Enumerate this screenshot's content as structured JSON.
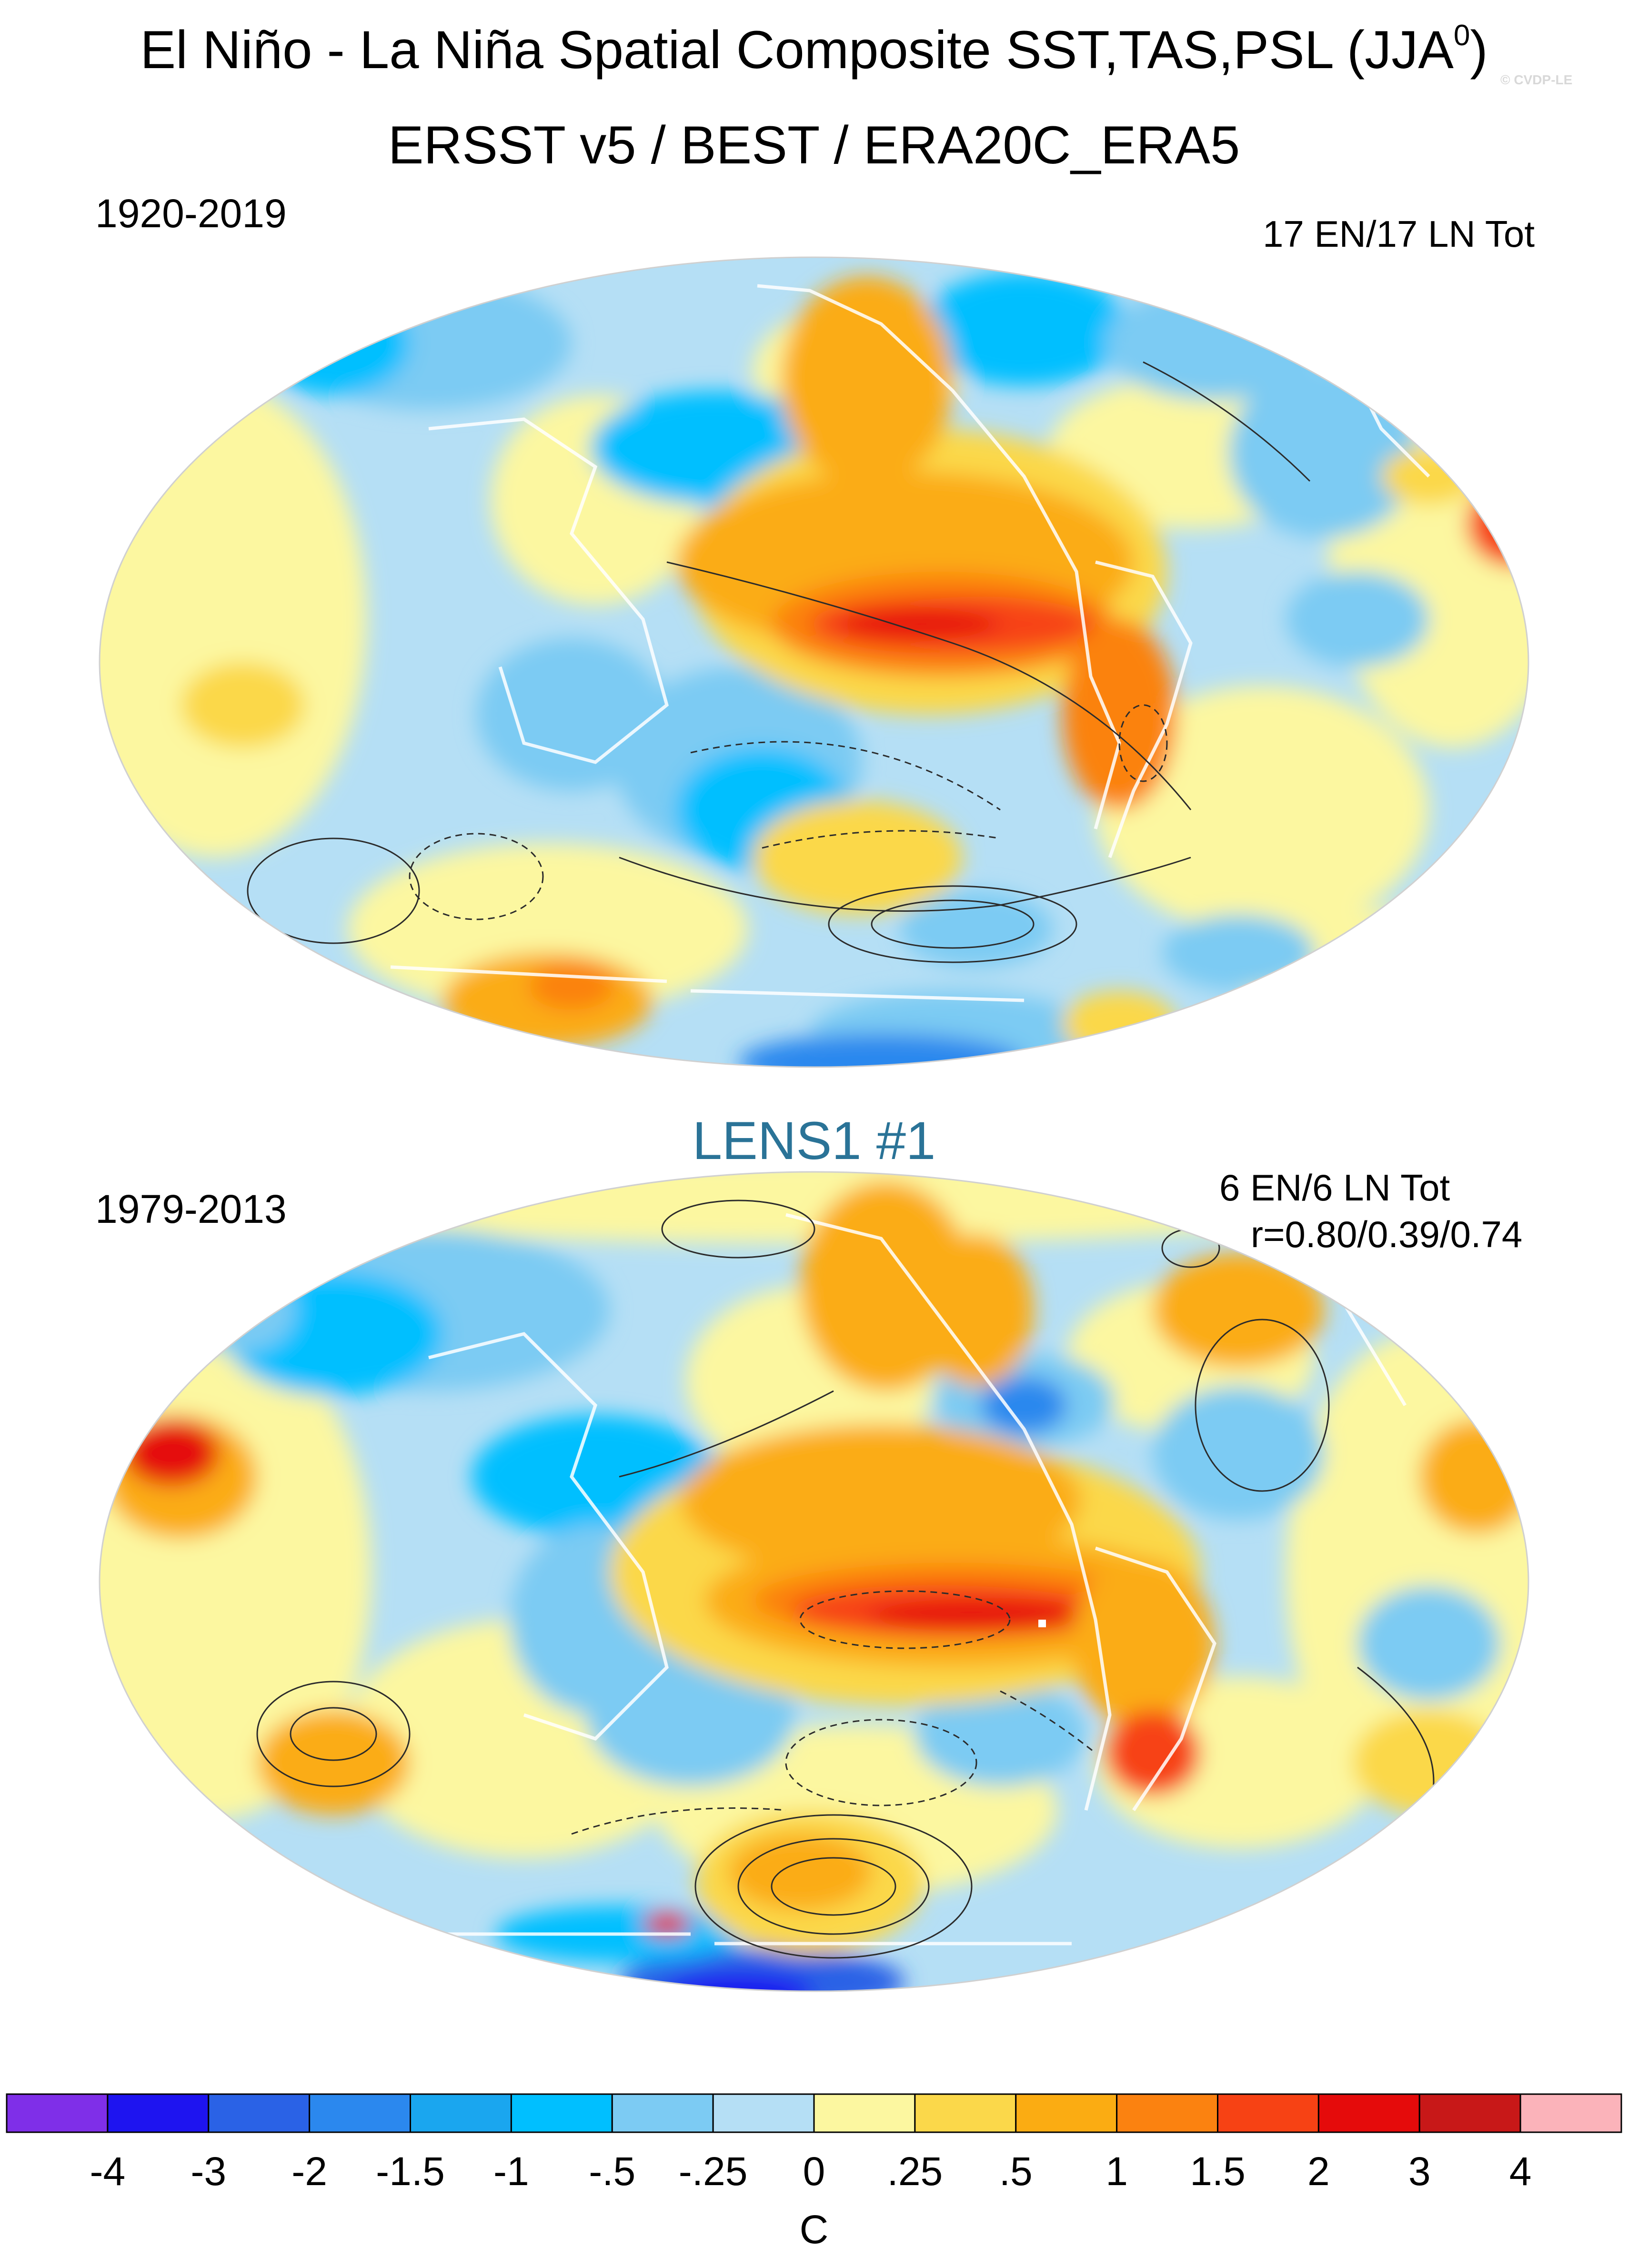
{
  "header": {
    "title_main": "El Niño - La Niña Spatial Composite SST,TAS,PSL (JJA",
    "title_sup": "0",
    "title_close": ")",
    "subtitle": "ERSST v5 / BEST / ERA20C_ERA5",
    "credit": "© CVDP-LE"
  },
  "panels": [
    {
      "period": "1920-2019",
      "counts": "17 EN/17 LN Tot",
      "correlation": ""
    },
    {
      "title": "LENS1 #1",
      "period": "1979-2013",
      "counts": "6 EN/6 LN Tot",
      "correlation": "r=0.80/0.39/0.74"
    }
  ],
  "colorbar": {
    "unit": "C",
    "labels": [
      "-4",
      "-3",
      "-2",
      "-1.5",
      "-1",
      "-.5",
      "-.25",
      "0",
      ".25",
      ".5",
      "1",
      "1.5",
      "2",
      "3",
      "4"
    ],
    "colors": [
      "#7f2fe8",
      "#1e14f0",
      "#2a62e6",
      "#2b88ee",
      "#1aa6ef",
      "#00bfff",
      "#7ccbf3",
      "#b5dff5",
      "#fcf7a0",
      "#fbd84a",
      "#fbac12",
      "#fb8210",
      "#f74214",
      "#e50b0b",
      "#c81818",
      "#fbb3ba"
    ]
  }
}
